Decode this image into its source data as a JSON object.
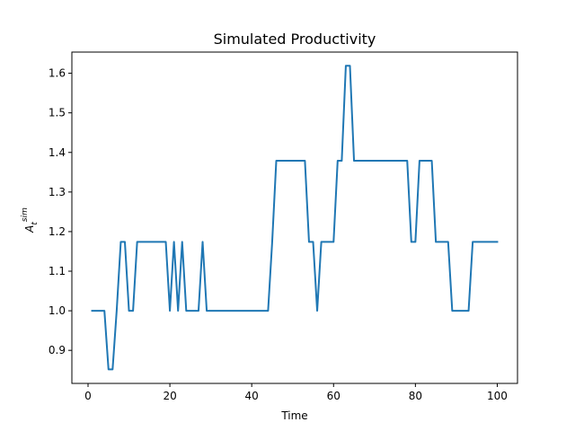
{
  "chart_data": {
    "type": "line",
    "title": "Simulated Productivity",
    "xlabel": "Time",
    "ylabel": {
      "base": "A",
      "sub": "t",
      "sup": "sim"
    },
    "xlim": [
      -3.95,
      104.95
    ],
    "ylim": [
      0.8165,
      1.6535
    ],
    "xticks": [
      0,
      20,
      40,
      60,
      80,
      100
    ],
    "yticks": [
      0.9,
      1.0,
      1.1,
      1.2,
      1.3,
      1.4,
      1.5,
      1.6
    ],
    "ytick_labels": [
      "0.9",
      "1.0",
      "1.1",
      "1.2",
      "1.3",
      "1.4",
      "1.5",
      "1.6"
    ],
    "grid": false,
    "legend": "none",
    "colors": {
      "series": "#1f77b4"
    },
    "series": [
      {
        "x": [
          1,
          2,
          3,
          4,
          5,
          6,
          7,
          8,
          9,
          10,
          11,
          12,
          13,
          14,
          15,
          16,
          17,
          18,
          19,
          20,
          21,
          22,
          23,
          24,
          25,
          26,
          27,
          28,
          29,
          30,
          31,
          32,
          33,
          34,
          35,
          36,
          37,
          38,
          39,
          40,
          41,
          42,
          43,
          44,
          45,
          46,
          47,
          48,
          49,
          50,
          51,
          52,
          53,
          54,
          55,
          56,
          57,
          58,
          59,
          60,
          61,
          62,
          63,
          64,
          65,
          66,
          67,
          68,
          69,
          70,
          71,
          72,
          73,
          74,
          75,
          76,
          77,
          78,
          79,
          80,
          81,
          82,
          83,
          84,
          85,
          86,
          87,
          88,
          89,
          90,
          91,
          92,
          93,
          94,
          95,
          96,
          97,
          98,
          99,
          100
        ],
        "values": [
          1.0,
          1.0,
          1.0,
          1.0,
          0.852,
          0.852,
          1.0,
          1.174,
          1.174,
          1.0,
          1.0,
          1.174,
          1.174,
          1.174,
          1.174,
          1.174,
          1.174,
          1.174,
          1.174,
          1.0,
          1.174,
          1.0,
          1.174,
          1.0,
          1.0,
          1.0,
          1.0,
          1.174,
          1.0,
          1.0,
          1.0,
          1.0,
          1.0,
          1.0,
          1.0,
          1.0,
          1.0,
          1.0,
          1.0,
          1.0,
          1.0,
          1.0,
          1.0,
          1.0,
          1.174,
          1.379,
          1.379,
          1.379,
          1.379,
          1.379,
          1.379,
          1.379,
          1.379,
          1.174,
          1.174,
          1.0,
          1.174,
          1.174,
          1.174,
          1.174,
          1.379,
          1.379,
          1.619,
          1.619,
          1.379,
          1.379,
          1.379,
          1.379,
          1.379,
          1.379,
          1.379,
          1.379,
          1.379,
          1.379,
          1.379,
          1.379,
          1.379,
          1.379,
          1.174,
          1.174,
          1.379,
          1.379,
          1.379,
          1.379,
          1.174,
          1.174,
          1.174,
          1.174,
          1.0,
          1.0,
          1.0,
          1.0,
          1.0,
          1.174,
          1.174,
          1.174,
          1.174,
          1.174,
          1.174,
          1.174
        ]
      }
    ]
  }
}
